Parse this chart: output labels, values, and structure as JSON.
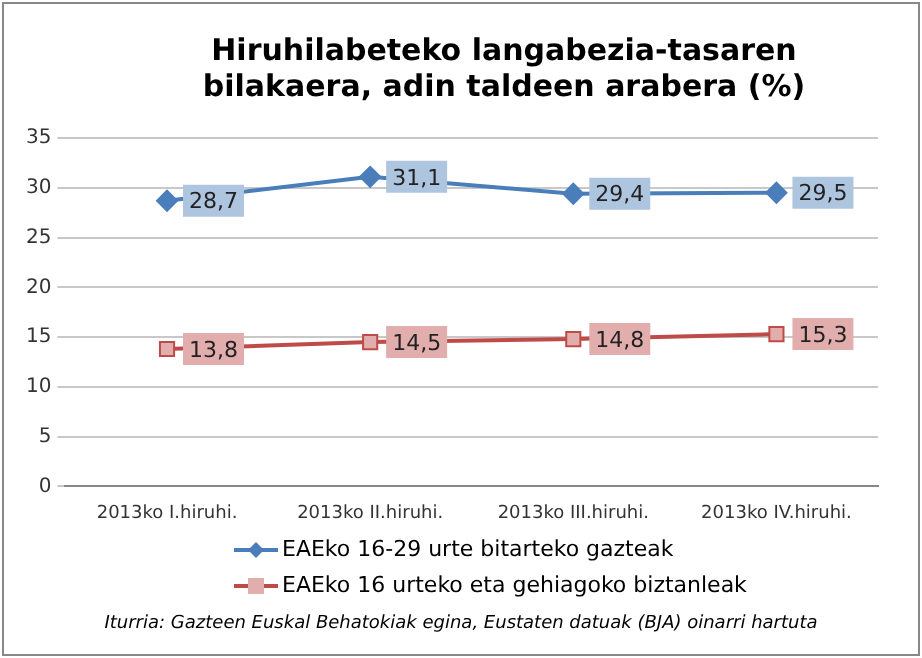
{
  "chart_data": {
    "type": "line",
    "title": "Hiruhilabeteko langabezia-tasaren bilakaera, adin taldeen arabera (%)",
    "categories": [
      "2013ko I.hiruhi.",
      "2013ko II.hiruhi.",
      "2013ko III.hiruhi.",
      "2013ko IV.hiruhi."
    ],
    "series": [
      {
        "name": "EAEko 16-29 urte bitarteko gazteak",
        "color": "#4a7ebb",
        "marker": "diamond",
        "values": [
          28.7,
          31.1,
          29.4,
          29.5
        ],
        "value_labels": [
          "28,7",
          "31,1",
          "29,4",
          "29,5"
        ]
      },
      {
        "name": "EAEko 16 urteko eta gehiagoko biztanleak",
        "color": "#be4b48",
        "marker": "square",
        "values": [
          13.8,
          14.5,
          14.8,
          15.3
        ],
        "value_labels": [
          "13,8",
          "14,5",
          "14,8",
          "15,3"
        ]
      }
    ],
    "ylim": [
      0,
      35
    ],
    "yticks": [
      0,
      5,
      10,
      15,
      20,
      25,
      30,
      35
    ],
    "grid": "y",
    "legend": "bottom",
    "line_style": "solid",
    "annotations": [
      "Iturria: Gazteen  Euskal Behatokiak egina, Eustaten datuak (BJA) oinarri hartuta"
    ]
  }
}
